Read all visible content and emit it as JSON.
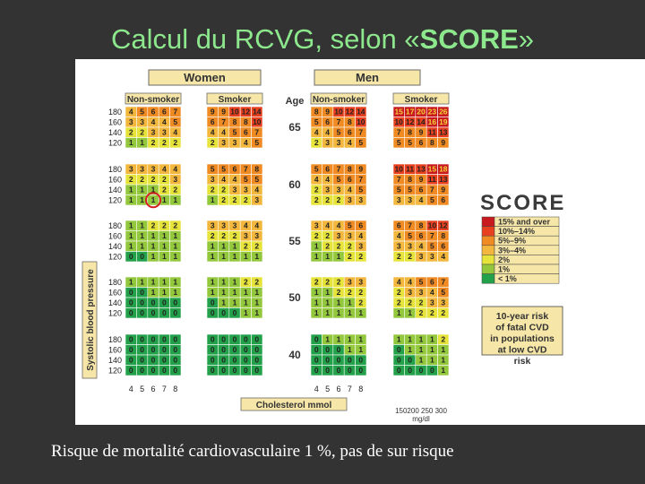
{
  "slide": {
    "title_prefix": "Calcul du RCVG, selon «",
    "title_bold": "SCORE",
    "title_suffix": "»",
    "caption": "Risque de mortalité cardiovasculaire 1 %, pas de sur risque"
  },
  "chart_data": {
    "type": "heatmap",
    "title": "",
    "sex_labels": [
      "Women",
      "Men"
    ],
    "smoking_labels": [
      "Non-smoker",
      "Smoker",
      "Non-smoker",
      "Smoker"
    ],
    "age_header": "Age",
    "ages": [
      "65",
      "60",
      "55",
      "50",
      "40"
    ],
    "sbp_levels": [
      "180",
      "160",
      "140",
      "120"
    ],
    "cholesterol_levels": [
      "4",
      "5",
      "6",
      "7",
      "8"
    ],
    "xlabel": "Cholesterol mmol",
    "ylabel": "Systolic blood pressure",
    "mgdl_ticks": "150200 250 300",
    "mgdl_unit": "mg/dl",
    "logo": "SCORE",
    "legend_title": "10-year risk of fatal CVD in populations at low CVD risk",
    "legend": [
      {
        "label": "15% and over",
        "color": "#c8191f"
      },
      {
        "label": "10%–14%",
        "color": "#e8401e"
      },
      {
        "label": "5%–9%",
        "color": "#f08a22"
      },
      {
        "label": "3%–4%",
        "color": "#f2b73c"
      },
      {
        "label": "2%",
        "color": "#e6e33a"
      },
      {
        "label": "1%",
        "color": "#93c83d"
      },
      {
        "label": "< 1%",
        "color": "#22a14a"
      }
    ],
    "highlight": {
      "age": "60",
      "sex": "Women",
      "smoking": "Non-smoker",
      "sbp": "120",
      "cholesterol": "6"
    },
    "values": [
      [
        [
          [
            4,
            5,
            6,
            6,
            7
          ],
          [
            3,
            3,
            4,
            4,
            5
          ],
          [
            2,
            2,
            3,
            3,
            4
          ],
          [
            1,
            1,
            2,
            2,
            2
          ]
        ],
        [
          [
            9,
            9,
            10,
            12,
            14
          ],
          [
            6,
            7,
            8,
            8,
            10
          ],
          [
            4,
            4,
            5,
            6,
            7
          ],
          [
            2,
            3,
            3,
            4,
            5
          ]
        ],
        [
          [
            8,
            9,
            10,
            12,
            14
          ],
          [
            5,
            6,
            7,
            8,
            10
          ],
          [
            4,
            4,
            5,
            6,
            7
          ],
          [
            2,
            3,
            3,
            4,
            5
          ]
        ],
        [
          [
            15,
            17,
            20,
            23,
            26
          ],
          [
            10,
            12,
            14,
            16,
            19
          ],
          [
            7,
            8,
            9,
            11,
            13
          ],
          [
            5,
            5,
            6,
            8,
            9
          ]
        ]
      ],
      [
        [
          [
            3,
            3,
            3,
            4,
            4
          ],
          [
            2,
            2,
            2,
            2,
            3
          ],
          [
            1,
            1,
            1,
            2,
            2
          ],
          [
            1,
            1,
            1,
            1,
            1
          ]
        ],
        [
          [
            5,
            5,
            6,
            7,
            8
          ],
          [
            3,
            4,
            4,
            5,
            5
          ],
          [
            2,
            2,
            3,
            3,
            4
          ],
          [
            1,
            2,
            2,
            2,
            3
          ]
        ],
        [
          [
            5,
            6,
            7,
            8,
            9
          ],
          [
            4,
            4,
            5,
            6,
            7
          ],
          [
            2,
            3,
            3,
            4,
            5
          ],
          [
            2,
            2,
            2,
            3,
            3
          ]
        ],
        [
          [
            10,
            11,
            13,
            15,
            18
          ],
          [
            7,
            8,
            9,
            11,
            13
          ],
          [
            5,
            5,
            6,
            7,
            9
          ],
          [
            3,
            3,
            4,
            5,
            6
          ]
        ]
      ],
      [
        [
          [
            1,
            1,
            2,
            2,
            2
          ],
          [
            1,
            1,
            1,
            1,
            1
          ],
          [
            1,
            1,
            1,
            1,
            1
          ],
          [
            0,
            0,
            1,
            1,
            1
          ]
        ],
        [
          [
            3,
            3,
            3,
            4,
            4
          ],
          [
            2,
            2,
            2,
            3,
            3
          ],
          [
            1,
            1,
            1,
            2,
            2
          ],
          [
            1,
            1,
            1,
            1,
            1
          ]
        ],
        [
          [
            3,
            4,
            4,
            5,
            6
          ],
          [
            2,
            2,
            3,
            3,
            4
          ],
          [
            1,
            2,
            2,
            2,
            3
          ],
          [
            1,
            1,
            1,
            2,
            2
          ]
        ],
        [
          [
            6,
            7,
            8,
            10,
            12
          ],
          [
            4,
            5,
            6,
            7,
            8
          ],
          [
            3,
            3,
            4,
            5,
            6
          ],
          [
            2,
            2,
            3,
            3,
            4
          ]
        ]
      ],
      [
        [
          [
            1,
            1,
            1,
            1,
            1
          ],
          [
            0,
            0,
            1,
            1,
            1
          ],
          [
            0,
            0,
            0,
            0,
            0
          ],
          [
            0,
            0,
            0,
            0,
            0
          ]
        ],
        [
          [
            1,
            1,
            1,
            2,
            2
          ],
          [
            1,
            1,
            1,
            1,
            1
          ],
          [
            0,
            1,
            1,
            1,
            1
          ],
          [
            0,
            0,
            0,
            1,
            1
          ]
        ],
        [
          [
            2,
            2,
            2,
            3,
            3
          ],
          [
            1,
            1,
            2,
            2,
            2
          ],
          [
            1,
            1,
            1,
            1,
            2
          ],
          [
            1,
            1,
            1,
            1,
            1
          ]
        ],
        [
          [
            4,
            4,
            5,
            6,
            7
          ],
          [
            2,
            3,
            3,
            4,
            5
          ],
          [
            2,
            2,
            2,
            3,
            3
          ],
          [
            1,
            1,
            2,
            2,
            2
          ]
        ]
      ],
      [
        [
          [
            0,
            0,
            0,
            0,
            0
          ],
          [
            0,
            0,
            0,
            0,
            0
          ],
          [
            0,
            0,
            0,
            0,
            0
          ],
          [
            0,
            0,
            0,
            0,
            0
          ]
        ],
        [
          [
            0,
            0,
            0,
            0,
            0
          ],
          [
            0,
            0,
            0,
            0,
            0
          ],
          [
            0,
            0,
            0,
            0,
            0
          ],
          [
            0,
            0,
            0,
            0,
            0
          ]
        ],
        [
          [
            0,
            1,
            1,
            1,
            1
          ],
          [
            0,
            0,
            0,
            1,
            1
          ],
          [
            0,
            0,
            0,
            0,
            0
          ],
          [
            0,
            0,
            0,
            0,
            0
          ]
        ],
        [
          [
            1,
            1,
            1,
            1,
            2
          ],
          [
            0,
            1,
            1,
            1,
            1
          ],
          [
            0,
            0,
            1,
            1,
            1
          ],
          [
            0,
            0,
            0,
            0,
            1
          ]
        ]
      ]
    ]
  }
}
